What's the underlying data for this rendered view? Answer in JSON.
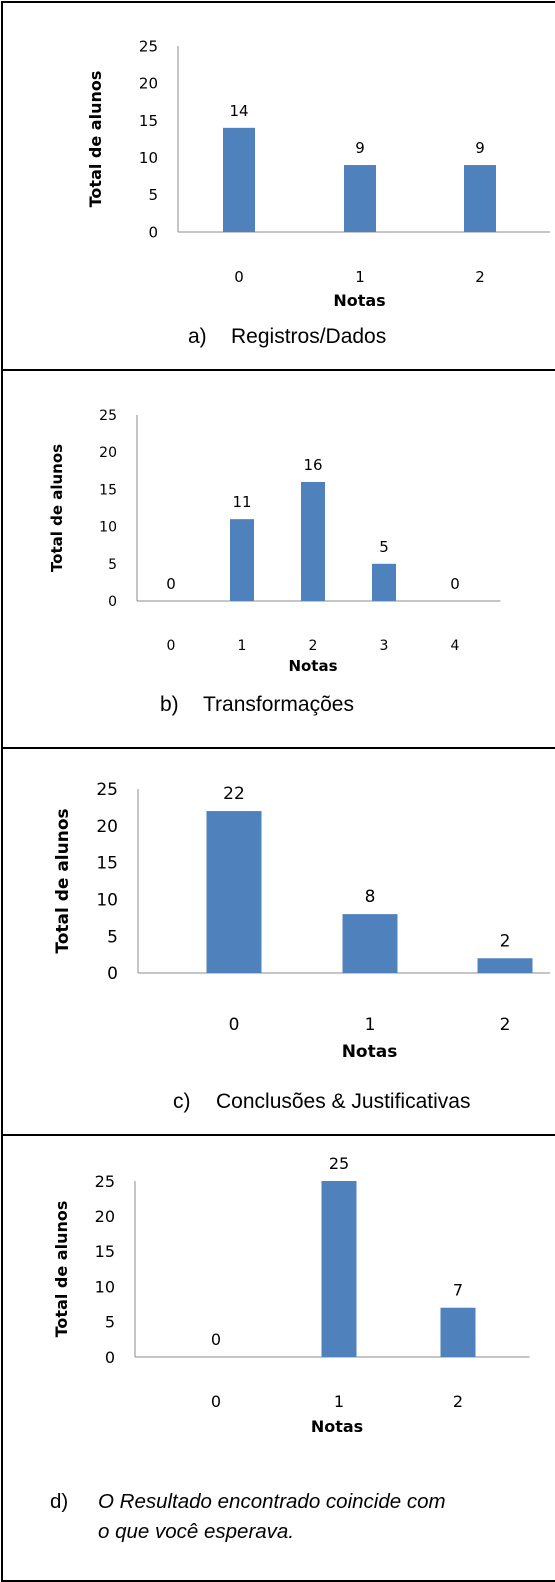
{
  "chart_data": [
    {
      "type": "bar",
      "categories": [
        "0",
        "1",
        "2"
      ],
      "values": [
        14,
        9,
        9
      ],
      "data_labels": [
        "14",
        "9",
        "9"
      ],
      "xlabel": "Notas",
      "ylabel": "Total de alunos",
      "ylim": [
        0,
        25
      ],
      "yticks": [
        "0",
        "5",
        "10",
        "15",
        "20",
        "25"
      ],
      "bar_color": "#4f81bd",
      "caption_letter": "a)",
      "caption_text": "Registros/Dados"
    },
    {
      "type": "bar",
      "categories": [
        "0",
        "1",
        "2",
        "3",
        "4"
      ],
      "values": [
        0,
        11,
        16,
        5,
        0
      ],
      "data_labels": [
        "0",
        "11",
        "16",
        "5",
        "0"
      ],
      "xlabel": "Notas",
      "ylabel": "Total de alunos",
      "ylim": [
        0,
        25
      ],
      "yticks": [
        "0",
        "5",
        "10",
        "15",
        "20",
        "25"
      ],
      "bar_color": "#4f81bd",
      "caption_letter": "b)",
      "caption_text": "Transformações"
    },
    {
      "type": "bar",
      "categories": [
        "0",
        "1",
        "2"
      ],
      "values": [
        22,
        8,
        2
      ],
      "data_labels": [
        "22",
        "8",
        "2"
      ],
      "xlabel": "Notas",
      "ylabel": "Total de alunos",
      "ylim": [
        0,
        25
      ],
      "yticks": [
        "0",
        "5",
        "10",
        "15",
        "20",
        "25"
      ],
      "bar_color": "#4f81bd",
      "caption_letter": "c)",
      "caption_text": "Conclusões & Justificativas"
    },
    {
      "type": "bar",
      "categories": [
        "0",
        "1",
        "2"
      ],
      "values": [
        0,
        25,
        7
      ],
      "data_labels": [
        "0",
        "25",
        "7"
      ],
      "xlabel": "Notas",
      "ylabel": "Total de alunos",
      "ylim": [
        0,
        25
      ],
      "yticks": [
        "0",
        "5",
        "10",
        "15",
        "20",
        "25"
      ],
      "bar_color": "#4f81bd",
      "caption_letter": "d)",
      "caption_line1": "O Resultado encontrado coincide com",
      "caption_line2": "o que você esperava."
    }
  ]
}
